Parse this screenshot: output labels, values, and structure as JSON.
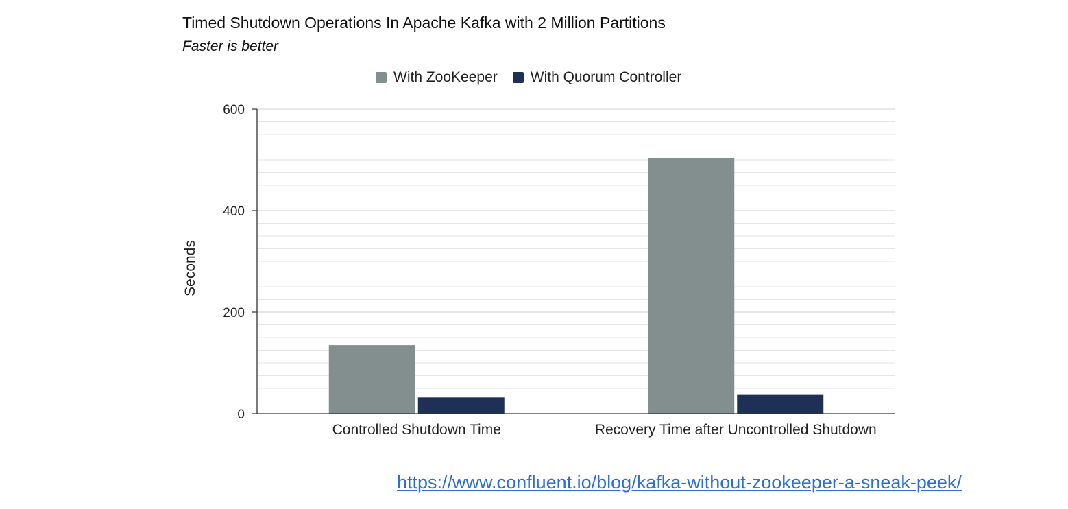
{
  "chart_data": {
    "type": "bar",
    "title": "Timed Shutdown Operations In Apache Kafka with 2 Million Partitions",
    "subtitle": "Faster is better",
    "ylabel": "Seconds",
    "ylim": [
      0,
      600
    ],
    "yticks": [
      "0",
      "200",
      "400",
      "600"
    ],
    "categories": [
      "Controlled Shutdown Time",
      "Recovery Time after Uncontrolled Shutdown"
    ],
    "series": [
      {
        "name": "With ZooKeeper",
        "values": [
          135,
          503
        ],
        "color": "#838f8f"
      },
      {
        "name": "With Quorum Controller",
        "values": [
          32,
          37
        ],
        "color": "#1f3057"
      }
    ],
    "grid": true,
    "legend_position": "top"
  },
  "footer": {
    "link_text": "https://www.confluent.io/blog/kafka-without-zookeeper-a-sneak-peek/"
  }
}
